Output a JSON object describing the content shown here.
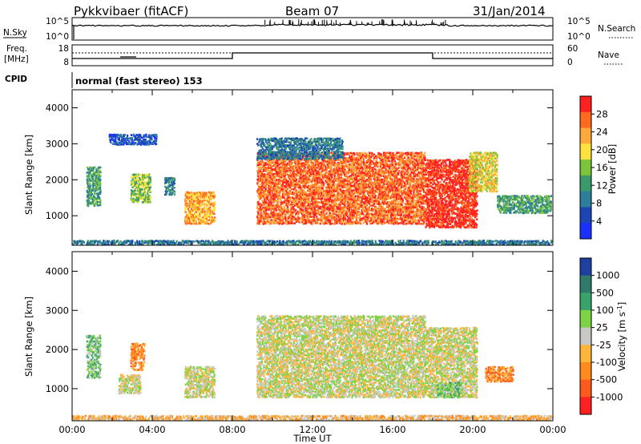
{
  "header": {
    "station": "Pykkvibaer (fitACF)",
    "beam": "Beam 07",
    "date": "31/Jan/2014"
  },
  "strips": {
    "nsky_label": "N.Sky",
    "nsearch_label": "N.Search",
    "freq_label_line1": "Freq.",
    "freq_label_line2": "[MHz]",
    "nave_label": "Nave",
    "cpid_label": "CPID",
    "cpid_text": "normal (fast stereo) 153",
    "noise_left_ticks": [
      "10^5",
      "10^0"
    ],
    "noise_right_ticks": [
      "10^5",
      "10^0"
    ],
    "freq_left_ticks": [
      "18",
      "8"
    ],
    "nave_right_ticks": [
      "60",
      "0"
    ]
  },
  "chart_data": [
    {
      "type": "heatmap",
      "panel": "power",
      "ylabel": "Slant Range [km]",
      "ylim": [
        180,
        4500
      ],
      "yticks": [
        "1000",
        "2000",
        "3000",
        "4000"
      ],
      "xlim_hours": [
        0,
        24
      ],
      "color_label": "Power [dB]",
      "color_ticks": [
        "4",
        "8",
        "12",
        "16",
        "20",
        "24",
        "28"
      ],
      "color_scale": [
        "#1a30ff",
        "#1b46b4",
        "#2d7d9c",
        "#3c9a6a",
        "#7cc43c",
        "#ffe33c",
        "#ffa83c",
        "#ff6a1e",
        "#ff2020"
      ],
      "scatter_regions": [
        {
          "t": [
            0.7,
            1.4
          ],
          "r": [
            1300,
            2400
          ],
          "level": 3
        },
        {
          "t": [
            2.9,
            3.9
          ],
          "r": [
            1400,
            2200
          ],
          "level": 4
        },
        {
          "t": [
            4.6,
            5.1
          ],
          "r": [
            1600,
            2100
          ],
          "level": 2
        },
        {
          "t": [
            5.6,
            7.1
          ],
          "r": [
            800,
            1700
          ],
          "level": 6
        },
        {
          "t": [
            1.8,
            4.2
          ],
          "r": [
            3000,
            3300
          ],
          "level": 1
        },
        {
          "t": [
            9.2,
            17.6
          ],
          "r": [
            800,
            2800
          ],
          "level": 7
        },
        {
          "t": [
            17.6,
            20.2
          ],
          "r": [
            700,
            2600
          ],
          "level": 8
        },
        {
          "t": [
            19.8,
            21.2
          ],
          "r": [
            1700,
            2800
          ],
          "level": 5
        },
        {
          "t": [
            21.2,
            23.9
          ],
          "r": [
            1100,
            1600
          ],
          "level": 3
        },
        {
          "t": [
            9.2,
            13.5
          ],
          "r": [
            2600,
            3200
          ],
          "level": 2
        },
        {
          "t": [
            0.0,
            24.0
          ],
          "r": [
            180,
            350
          ],
          "level": 2
        }
      ]
    },
    {
      "type": "heatmap",
      "panel": "velocity",
      "ylabel": "Slant Range [km]",
      "ylim": [
        180,
        4500
      ],
      "yticks": [
        "1000",
        "2000",
        "3000",
        "4000"
      ],
      "xlim_hours": [
        0,
        24
      ],
      "xticks": [
        "00:00",
        "04:00",
        "08:00",
        "12:00",
        "16:00",
        "20:00",
        "00:00"
      ],
      "xlabel": "Time UT",
      "color_label": "Velocity [m s^-1]",
      "color_ticks": [
        "1000",
        "500",
        "100",
        "25",
        "-25",
        "-100",
        "-500",
        "-1000"
      ],
      "color_scale": [
        "#1e40a0",
        "#2f7a6a",
        "#3aa36a",
        "#7cd444",
        "#c8c8c4",
        "#ffb43c",
        "#ff8a1e",
        "#ff5a1e",
        "#ff2020"
      ],
      "scatter_regions": [
        {
          "t": [
            0.7,
            1.4
          ],
          "r": [
            1300,
            2400
          ],
          "level": 3
        },
        {
          "t": [
            2.9,
            3.6
          ],
          "r": [
            1500,
            2200
          ],
          "level": 6
        },
        {
          "t": [
            2.3,
            3.4
          ],
          "r": [
            900,
            1400
          ],
          "level": 4
        },
        {
          "t": [
            5.6,
            7.1
          ],
          "r": [
            800,
            1600
          ],
          "level": 4
        },
        {
          "t": [
            9.2,
            17.6
          ],
          "r": [
            800,
            2900
          ],
          "level": 4
        },
        {
          "t": [
            17.6,
            20.2
          ],
          "r": [
            800,
            2600
          ],
          "level": 4
        },
        {
          "t": [
            18.2,
            19.4
          ],
          "r": [
            800,
            1200
          ],
          "level": 3
        },
        {
          "t": [
            20.6,
            22.0
          ],
          "r": [
            1200,
            1600
          ],
          "level": 6
        },
        {
          "t": [
            0.0,
            24.0
          ],
          "r": [
            180,
            350
          ],
          "level": 5
        }
      ]
    }
  ]
}
